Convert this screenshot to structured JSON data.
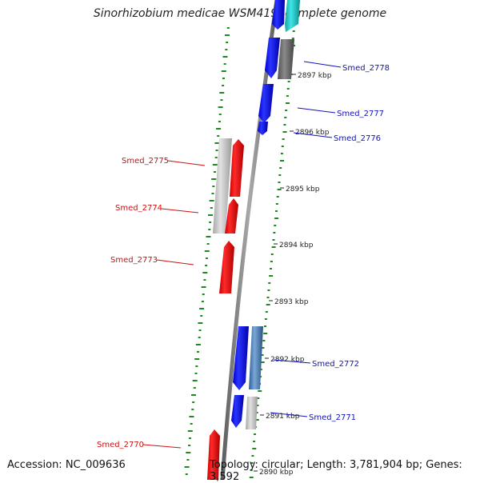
{
  "title": "Sinorhizobium medicae WSM419, complete genome",
  "footer": {
    "accession": "Accession: NC_009636",
    "topology": "Topology: circular; Length: 3,781,904 bp; Genes: 3,592"
  },
  "colors": {
    "forward_gene": "#0a14ee",
    "reverse_gene": "#ee1010",
    "forward_product": "#686868",
    "reverse_product": "#bdbdbd",
    "label_forward": "#1111bb",
    "label_reverse": "#cc1111",
    "gc_marks": "#1d8a1d",
    "backbone": "#7b7b7b"
  },
  "scale_ticks": [
    {
      "label": "2897 kbp"
    },
    {
      "label": "2896 kbp"
    },
    {
      "label": "2895 kbp"
    },
    {
      "label": "2894 kbp"
    },
    {
      "label": "2893 kbp"
    },
    {
      "label": "2892 kbp"
    },
    {
      "label": "2891 kbp"
    },
    {
      "label": "2890 kbp"
    }
  ],
  "gene_labels_forward": [
    {
      "label": "Smed_2778"
    },
    {
      "label": "Smed_2777"
    },
    {
      "label": "Smed_2776"
    },
    {
      "label": "Smed_2772"
    },
    {
      "label": "Smed_2771"
    }
  ],
  "gene_labels_reverse": [
    {
      "label": "Smed_2775"
    },
    {
      "label": "Smed_2774"
    },
    {
      "label": "Smed_2773"
    },
    {
      "label": "Smed_2770"
    }
  ]
}
